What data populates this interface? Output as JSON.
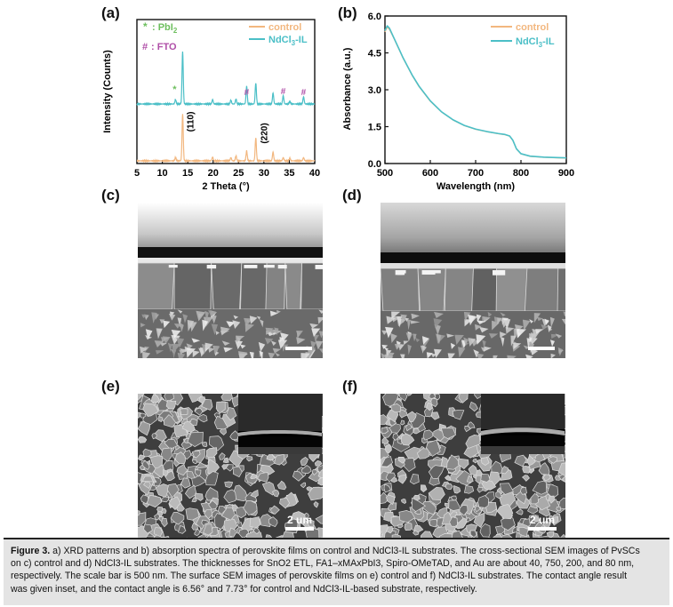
{
  "panel_labels": {
    "a": "(a)",
    "b": "(b)",
    "c": "(c)",
    "d": "(d)",
    "e": "(e)",
    "f": "(f)"
  },
  "colors": {
    "control": "#f2b77f",
    "ndcl": "#4bbfc7",
    "pbi2_marker": "#6dbf5e",
    "fto_marker": "#b04fa8"
  },
  "chart_data": [
    {
      "type": "line",
      "panel": "(a)",
      "xlabel": "2 Theta (°)",
      "ylabel": "Intensity (Counts)",
      "xlim": [
        5,
        40
      ],
      "xticks": [
        "5",
        "10",
        "15",
        "20",
        "25",
        "30",
        "35",
        "40"
      ],
      "legend": [
        "control",
        "NdCl3-IL"
      ],
      "legend_placement": "top-right",
      "marker_legend": [
        {
          "symbol": "*",
          "text": ": PbI2"
        },
        {
          "symbol": "#",
          "text": ": FTO"
        }
      ],
      "peak_labels": [
        {
          "text": "(110)",
          "x": 14.0
        },
        {
          "text": "(220)",
          "x": 28.4
        }
      ],
      "fto_peaks_x": [
        26.6,
        33.8,
        37.8
      ],
      "pbi2_peak_x": 12.6,
      "series": [
        {
          "name": "NdCl3-IL",
          "peaks": [
            [
              12.6,
              0.08
            ],
            [
              14.0,
              0.95
            ],
            [
              19.9,
              0.08
            ],
            [
              23.5,
              0.07
            ],
            [
              24.5,
              0.09
            ],
            [
              26.6,
              0.32
            ],
            [
              28.4,
              0.38
            ],
            [
              31.8,
              0.2
            ],
            [
              33.8,
              0.15
            ],
            [
              35.1,
              0.05
            ],
            [
              37.8,
              0.13
            ]
          ]
        },
        {
          "name": "control",
          "peaks": [
            [
              12.6,
              0.06
            ],
            [
              14.0,
              0.85
            ],
            [
              19.9,
              0.07
            ],
            [
              23.5,
              0.06
            ],
            [
              24.5,
              0.09
            ],
            [
              26.6,
              0.18
            ],
            [
              28.4,
              0.42
            ],
            [
              31.8,
              0.16
            ],
            [
              33.8,
              0.06
            ],
            [
              35.1,
              0.05
            ],
            [
              37.8,
              0.06
            ]
          ]
        }
      ]
    },
    {
      "type": "line",
      "panel": "(b)",
      "xlabel": "Wavelength (nm)",
      "ylabel": "Absorbance (a.u.)",
      "xlim": [
        500,
        900
      ],
      "ylim": [
        0,
        6.0
      ],
      "xticks": [
        "500",
        "600",
        "700",
        "800",
        "900"
      ],
      "yticks": [
        "0.0",
        "1.5",
        "3.0",
        "4.5",
        "6.0"
      ],
      "legend": [
        "control",
        "NdCl3-IL"
      ],
      "legend_placement": "top-right",
      "series": [
        {
          "name": "NdCl3-IL",
          "x": [
            500,
            505,
            510,
            520,
            530,
            540,
            550,
            560,
            575,
            600,
            625,
            650,
            675,
            700,
            725,
            750,
            765,
            775,
            782,
            790,
            800,
            820,
            850,
            880,
            900
          ],
          "y": [
            5.4,
            5.6,
            5.5,
            5.1,
            4.7,
            4.3,
            3.95,
            3.6,
            3.15,
            2.55,
            2.1,
            1.78,
            1.55,
            1.4,
            1.3,
            1.22,
            1.18,
            1.12,
            0.95,
            0.6,
            0.4,
            0.3,
            0.26,
            0.24,
            0.23
          ]
        },
        {
          "name": "control",
          "x": [
            500,
            505,
            510,
            520,
            530,
            540,
            550,
            560,
            575,
            600,
            625,
            650,
            675,
            700,
            725,
            750,
            765,
            775,
            782,
            790,
            800,
            820,
            850,
            880,
            900
          ],
          "y": [
            5.35,
            5.55,
            5.45,
            5.08,
            4.68,
            4.28,
            3.93,
            3.58,
            3.13,
            2.53,
            2.09,
            1.77,
            1.54,
            1.39,
            1.29,
            1.21,
            1.17,
            1.11,
            0.94,
            0.59,
            0.39,
            0.29,
            0.25,
            0.23,
            0.22
          ]
        }
      ]
    }
  ],
  "sem": {
    "e_scale": "2 um",
    "f_scale": "2 um"
  },
  "caption": {
    "label": "Figure 3.",
    "line1": "a) XRD patterns and b) absorption spectra of perovskite films on control and NdCl3-IL substrates. The cross-sectional SEM images of PvSCs",
    "line2": "on c) control and d) NdCl3-IL substrates. The thicknesses for SnO2 ETL, FA1–xMAxPbI3, Spiro-OMeTAD, and Au are about 40, 750, 200, and 80 nm,",
    "line3": "respectively. The scale bar is 500 nm. The surface SEM images of perovskite films on e) control and f) NdCl3-IL substrates. The contact angle result",
    "line4": "was given inset, and the contact angle is 6.56° and 7.73° for control and NdCl3-IL-based substrate, respectively."
  }
}
